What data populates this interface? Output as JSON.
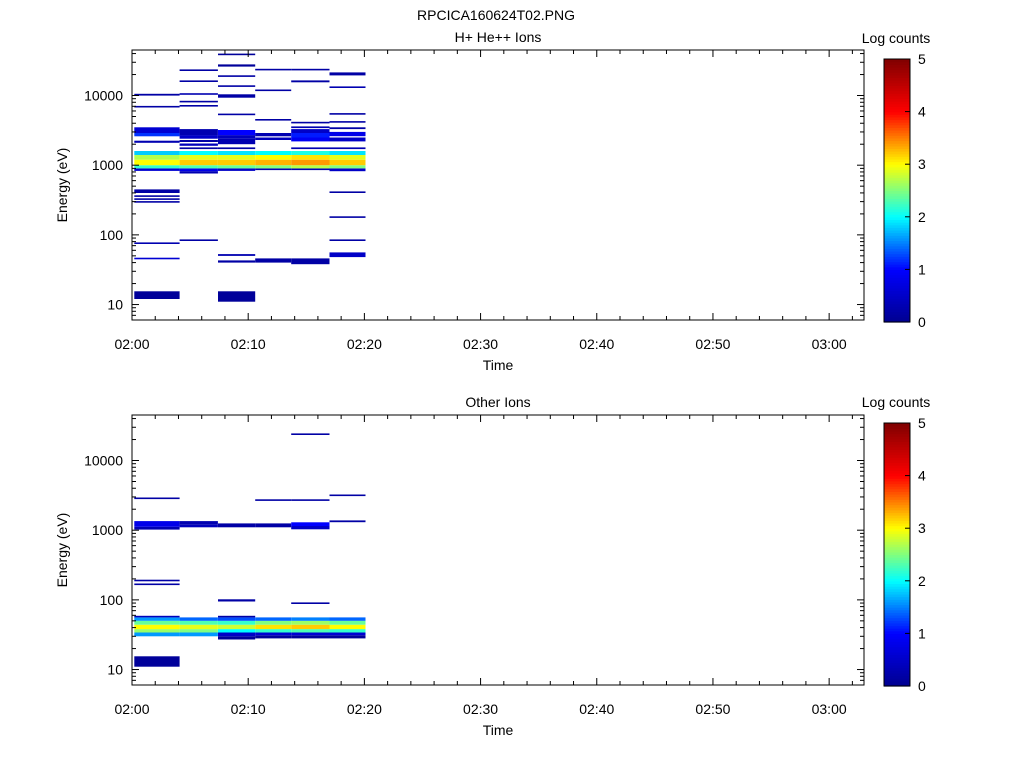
{
  "figure_title": "RPCICA160624T02.PNG",
  "colors": {
    "colormap": [
      "#00008f",
      "#0000ff",
      "#00ffff",
      "#ffff00",
      "#ff0000",
      "#800000"
    ]
  },
  "chart_data": [
    {
      "type": "heatmap",
      "title": "H+ He++ Ions",
      "xlabel": "Time",
      "ylabel": "Energy (eV)",
      "x_ticks": [
        "02:00",
        "02:10",
        "02:20",
        "02:30",
        "02:40",
        "02:50",
        "03:00"
      ],
      "y_ticks": [
        "10",
        "100",
        "1000",
        "10000"
      ],
      "y_scale": "log",
      "ylim": [
        6,
        45000
      ],
      "xlim_minutes": [
        0,
        63
      ],
      "grid": false,
      "colorbar": {
        "label": "Log counts",
        "range": [
          0,
          5
        ],
        "ticks": [
          "0",
          "1",
          "2",
          "3",
          "4",
          "5"
        ]
      },
      "time_bins_minutes": [
        [
          0.2,
          4.1
        ],
        [
          4.1,
          7.4
        ],
        [
          7.4,
          10.6
        ],
        [
          10.6,
          13.7
        ],
        [
          13.7,
          17.0
        ],
        [
          17.0,
          20.1
        ]
      ],
      "cells": [
        [
          0,
          12,
          15.5,
          0.1
        ],
        [
          0,
          45,
          47,
          0.6
        ],
        [
          0,
          75,
          78,
          0.3
        ],
        [
          0,
          290,
          305,
          0.2
        ],
        [
          0,
          320,
          335,
          0.2
        ],
        [
          0,
          360,
          370,
          0.2
        ],
        [
          0,
          400,
          450,
          0.2
        ],
        [
          0,
          830,
          900,
          0.6
        ],
        [
          0,
          900,
          1000,
          2.2
        ],
        [
          0,
          1000,
          1200,
          3.0
        ],
        [
          0,
          1200,
          1400,
          2.7
        ],
        [
          0,
          1400,
          1600,
          1.8
        ],
        [
          0,
          2100,
          2250,
          0.3
        ],
        [
          0,
          2600,
          2900,
          1.2
        ],
        [
          0,
          2900,
          3500,
          0.6
        ],
        [
          0,
          6800,
          7100,
          0.2
        ],
        [
          0,
          10000,
          10600,
          0.2
        ],
        [
          1,
          83,
          86,
          0.2
        ],
        [
          1,
          760,
          820,
          0.3
        ],
        [
          1,
          820,
          900,
          0.8
        ],
        [
          1,
          900,
          1000,
          2.3
        ],
        [
          1,
          1000,
          1200,
          3.2
        ],
        [
          1,
          1200,
          1400,
          2.9
        ],
        [
          1,
          1400,
          1600,
          2.0
        ],
        [
          1,
          1700,
          1800,
          0.2
        ],
        [
          1,
          1900,
          2050,
          0.4
        ],
        [
          1,
          2150,
          2300,
          0.2
        ],
        [
          1,
          2400,
          2700,
          0.5
        ],
        [
          1,
          2700,
          3300,
          0.3
        ],
        [
          1,
          7000,
          7300,
          0.2
        ],
        [
          1,
          8000,
          8400,
          0.2
        ],
        [
          1,
          10400,
          10800,
          0.3
        ],
        [
          1,
          15800,
          16500,
          0.2
        ],
        [
          1,
          23000,
          23700,
          0.2
        ],
        [
          2,
          11,
          15.5,
          0.1
        ],
        [
          2,
          40,
          43,
          0.2
        ],
        [
          2,
          50,
          53,
          0.3
        ],
        [
          2,
          830,
          900,
          0.5
        ],
        [
          2,
          900,
          1000,
          2.4
        ],
        [
          2,
          1000,
          1200,
          3.2
        ],
        [
          2,
          1200,
          1400,
          2.9
        ],
        [
          2,
          1400,
          1600,
          1.9
        ],
        [
          2,
          1700,
          1800,
          0.2
        ],
        [
          2,
          2000,
          2400,
          0.3
        ],
        [
          2,
          2400,
          2700,
          0.4
        ],
        [
          2,
          2700,
          3200,
          1.0
        ],
        [
          2,
          5300,
          5500,
          0.2
        ],
        [
          2,
          9300,
          10400,
          0.2
        ],
        [
          2,
          13500,
          14000,
          0.2
        ],
        [
          2,
          18500,
          19500,
          0.2
        ],
        [
          2,
          26000,
          28000,
          0.1
        ],
        [
          2,
          38000,
          40000,
          0.1
        ],
        [
          3,
          40,
          46,
          0.2
        ],
        [
          3,
          850,
          900,
          0.3
        ],
        [
          3,
          900,
          1000,
          2.5
        ],
        [
          3,
          1000,
          1200,
          3.3
        ],
        [
          3,
          1200,
          1400,
          3.0
        ],
        [
          3,
          1400,
          1600,
          2.0
        ],
        [
          3,
          2300,
          2500,
          0.4
        ],
        [
          3,
          2600,
          2900,
          0.3
        ],
        [
          3,
          4400,
          4600,
          0.2
        ],
        [
          3,
          11800,
          12200,
          0.2
        ],
        [
          3,
          23500,
          24200,
          0.2
        ],
        [
          4,
          38,
          46,
          0.2
        ],
        [
          4,
          850,
          900,
          0.3
        ],
        [
          4,
          900,
          1000,
          2.7
        ],
        [
          4,
          1000,
          1200,
          3.4
        ],
        [
          4,
          1200,
          1400,
          3.1
        ],
        [
          4,
          1400,
          1600,
          2.1
        ],
        [
          4,
          1700,
          1800,
          0.3
        ],
        [
          4,
          2200,
          2500,
          0.9
        ],
        [
          4,
          2500,
          2900,
          1.1
        ],
        [
          4,
          2900,
          3300,
          0.5
        ],
        [
          4,
          3400,
          3600,
          0.3
        ],
        [
          4,
          4000,
          4200,
          0.2
        ],
        [
          4,
          15500,
          16500,
          0.2
        ],
        [
          4,
          23500,
          24200,
          0.2
        ],
        [
          5,
          48,
          56,
          0.5
        ],
        [
          5,
          84,
          86,
          0.2
        ],
        [
          5,
          180,
          185,
          0.2
        ],
        [
          5,
          400,
          420,
          0.2
        ],
        [
          5,
          820,
          900,
          0.5
        ],
        [
          5,
          900,
          1000,
          2.5
        ],
        [
          5,
          1000,
          1200,
          3.2
        ],
        [
          5,
          1200,
          1400,
          2.9
        ],
        [
          5,
          1400,
          1600,
          1.9
        ],
        [
          5,
          1700,
          1800,
          0.3
        ],
        [
          5,
          2200,
          2500,
          0.5
        ],
        [
          5,
          2600,
          3000,
          0.8
        ],
        [
          5,
          3300,
          3500,
          0.2
        ],
        [
          5,
          4100,
          4300,
          0.2
        ],
        [
          5,
          5400,
          5600,
          0.2
        ],
        [
          5,
          12900,
          13500,
          0.3
        ],
        [
          5,
          19500,
          21500,
          0.2
        ]
      ]
    },
    {
      "type": "heatmap",
      "title": "Other Ions",
      "xlabel": "Time",
      "ylabel": "Energy (eV)",
      "x_ticks": [
        "02:00",
        "02:10",
        "02:20",
        "02:30",
        "02:40",
        "02:50",
        "03:00"
      ],
      "y_ticks": [
        "10",
        "100",
        "1000",
        "10000"
      ],
      "y_scale": "log",
      "ylim": [
        6,
        45000
      ],
      "xlim_minutes": [
        0,
        63
      ],
      "grid": false,
      "colorbar": {
        "label": "Log counts",
        "range": [
          0,
          5
        ],
        "ticks": [
          "0",
          "1",
          "2",
          "3",
          "4",
          "5"
        ]
      },
      "time_bins_minutes": [
        [
          0.2,
          4.1
        ],
        [
          4.1,
          7.4
        ],
        [
          7.4,
          10.6
        ],
        [
          10.6,
          13.7
        ],
        [
          13.7,
          17.0
        ],
        [
          17.0,
          20.1
        ]
      ],
      "cells": [
        [
          0,
          11,
          15.5,
          0.1
        ],
        [
          0,
          30,
          34,
          1.6
        ],
        [
          0,
          34,
          38,
          2.6
        ],
        [
          0,
          38,
          44,
          3.0
        ],
        [
          0,
          44,
          50,
          2.4
        ],
        [
          0,
          50,
          56,
          1.6
        ],
        [
          0,
          56,
          59,
          0.4
        ],
        [
          0,
          165,
          172,
          0.2
        ],
        [
          0,
          185,
          195,
          0.2
        ],
        [
          0,
          1020,
          1120,
          0.3
        ],
        [
          0,
          1120,
          1350,
          0.8
        ],
        [
          0,
          2850,
          2950,
          0.2
        ],
        [
          1,
          30,
          34,
          1.6
        ],
        [
          1,
          34,
          38,
          2.5
        ],
        [
          1,
          38,
          44,
          2.9
        ],
        [
          1,
          44,
          50,
          2.3
        ],
        [
          1,
          50,
          56,
          1.4
        ],
        [
          1,
          1100,
          1200,
          0.4
        ],
        [
          1,
          1200,
          1350,
          0.3
        ],
        [
          2,
          27,
          30,
          0.1
        ],
        [
          2,
          30,
          34,
          0.5
        ],
        [
          2,
          34,
          38,
          2.0
        ],
        [
          2,
          38,
          44,
          2.8
        ],
        [
          2,
          44,
          50,
          2.2
        ],
        [
          2,
          50,
          56,
          1.3
        ],
        [
          2,
          56,
          59,
          0.2
        ],
        [
          2,
          95,
          102,
          0.2
        ],
        [
          2,
          1100,
          1250,
          0.2
        ],
        [
          3,
          28,
          31,
          0.1
        ],
        [
          3,
          31,
          34,
          0.6
        ],
        [
          3,
          34,
          38,
          2.2
        ],
        [
          3,
          38,
          44,
          3.1
        ],
        [
          3,
          44,
          50,
          2.5
        ],
        [
          3,
          50,
          56,
          1.4
        ],
        [
          3,
          1100,
          1250,
          0.2
        ],
        [
          3,
          2700,
          2780,
          0.2
        ],
        [
          4,
          28,
          31,
          0.1
        ],
        [
          4,
          31,
          34,
          0.6
        ],
        [
          4,
          34,
          38,
          2.3
        ],
        [
          4,
          38,
          44,
          3.2
        ],
        [
          4,
          44,
          50,
          2.6
        ],
        [
          4,
          50,
          56,
          1.5
        ],
        [
          4,
          88,
          92,
          0.2
        ],
        [
          4,
          1030,
          1150,
          0.5
        ],
        [
          4,
          1150,
          1300,
          1.0
        ],
        [
          4,
          2700,
          2780,
          0.2
        ],
        [
          4,
          23500,
          24500,
          0.2
        ],
        [
          5,
          28,
          31,
          0.1
        ],
        [
          5,
          31,
          34,
          0.6
        ],
        [
          5,
          34,
          38,
          2.2
        ],
        [
          5,
          38,
          44,
          3.0
        ],
        [
          5,
          44,
          50,
          2.4
        ],
        [
          5,
          50,
          56,
          1.4
        ],
        [
          5,
          1300,
          1380,
          0.2
        ],
        [
          5,
          3100,
          3250,
          0.2
        ]
      ]
    }
  ]
}
